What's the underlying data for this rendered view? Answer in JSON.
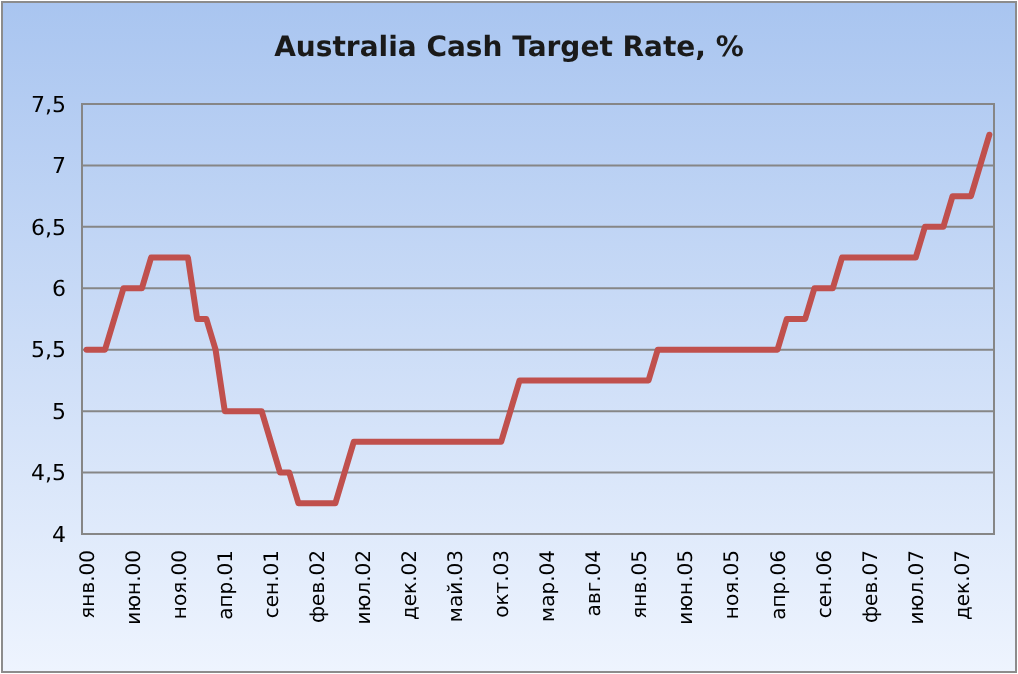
{
  "chart_data": {
    "type": "line",
    "title": "Australia Cash Target Rate, %",
    "categories": [
      "янв.00",
      null,
      null,
      null,
      null,
      "июн.00",
      null,
      null,
      null,
      null,
      "ноя.00",
      null,
      null,
      null,
      null,
      "апр.01",
      null,
      null,
      null,
      null,
      "сен.01",
      null,
      null,
      null,
      null,
      "фев.02",
      null,
      null,
      null,
      null,
      "июл.02",
      null,
      null,
      null,
      null,
      "дек.02",
      null,
      null,
      null,
      null,
      "май.03",
      null,
      null,
      null,
      null,
      "окт.03",
      null,
      null,
      null,
      null,
      "мар.04",
      null,
      null,
      null,
      null,
      "авг.04",
      null,
      null,
      null,
      null,
      "янв.05",
      null,
      null,
      null,
      null,
      "июн.05",
      null,
      null,
      null,
      null,
      "ноя.05",
      null,
      null,
      null,
      null,
      "апр.06",
      null,
      null,
      null,
      null,
      "сен.06",
      null,
      null,
      null,
      null,
      "фев.07",
      null,
      null,
      null,
      null,
      "июл.07",
      null,
      null,
      null,
      null,
      "дек.07",
      null,
      null,
      null
    ],
    "series": [
      {
        "color": "#c0504d",
        "values": [
          5.5,
          5.5,
          5.5,
          5.75,
          6,
          6,
          6,
          6.25,
          6.25,
          6.25,
          6.25,
          6.25,
          5.75,
          5.75,
          5.5,
          5,
          5,
          5,
          5,
          5,
          4.75,
          4.5,
          4.5,
          4.25,
          4.25,
          4.25,
          4.25,
          4.25,
          4.5,
          4.75,
          4.75,
          4.75,
          4.75,
          4.75,
          4.75,
          4.75,
          4.75,
          4.75,
          4.75,
          4.75,
          4.75,
          4.75,
          4.75,
          4.75,
          4.75,
          4.75,
          5,
          5.25,
          5.25,
          5.25,
          5.25,
          5.25,
          5.25,
          5.25,
          5.25,
          5.25,
          5.25,
          5.25,
          5.25,
          5.25,
          5.25,
          5.25,
          5.5,
          5.5,
          5.5,
          5.5,
          5.5,
          5.5,
          5.5,
          5.5,
          5.5,
          5.5,
          5.5,
          5.5,
          5.5,
          5.5,
          5.75,
          5.75,
          5.75,
          6,
          6,
          6,
          6.25,
          6.25,
          6.25,
          6.25,
          6.25,
          6.25,
          6.25,
          6.25,
          6.25,
          6.5,
          6.5,
          6.5,
          6.75,
          6.75,
          6.75,
          7,
          7.25
        ]
      }
    ],
    "ylim": [
      4,
      7.5
    ],
    "yticks": [
      4,
      {
        "value": 4.5,
        "label": "4,5"
      },
      5,
      {
        "value": 5.5,
        "label": "5,5"
      },
      6,
      {
        "value": 6.5,
        "label": "6,5"
      },
      7,
      {
        "value": 7.5,
        "label": "7,5"
      }
    ],
    "grid": "y",
    "marker": "none",
    "line_style": "solid"
  }
}
